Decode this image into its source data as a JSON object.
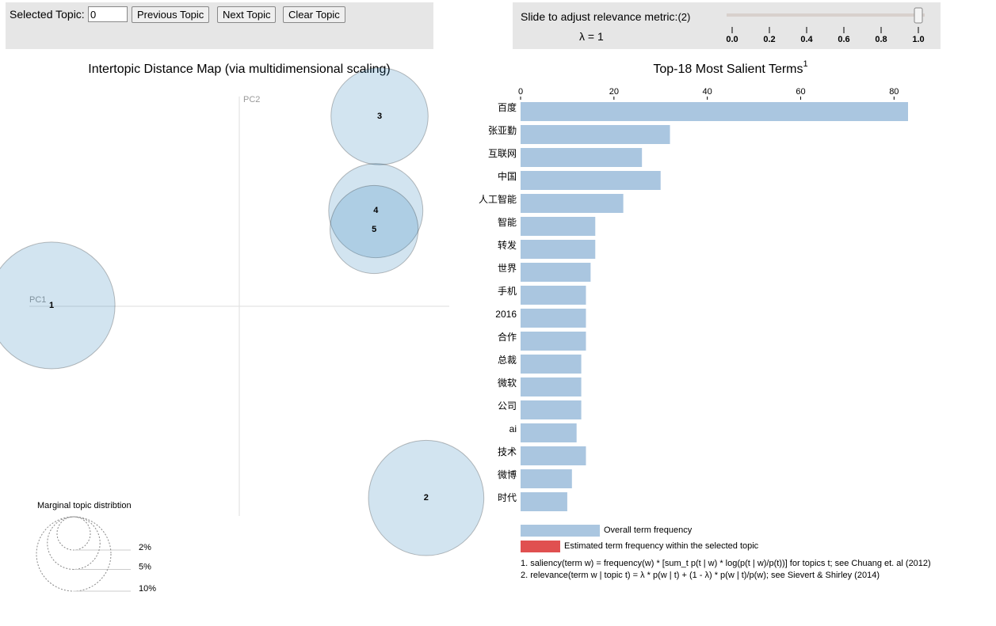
{
  "controls": {
    "label": "Selected Topic:",
    "topic_input": "0",
    "buttons": [
      "Previous Topic",
      "Next Topic",
      "Clear Topic"
    ]
  },
  "slider": {
    "label": "Slide to adjust relevance metric:",
    "note": "(2)",
    "lambda_label": "λ = 1",
    "value": 1,
    "range": [
      0,
      1
    ],
    "ticks": [
      {
        "value": 0,
        "label": "0.0"
      },
      {
        "value": 0.2,
        "label": "0.2"
      },
      {
        "value": 0.4,
        "label": "0.4"
      },
      {
        "value": 0.6,
        "label": "0.6"
      },
      {
        "value": 0.8,
        "label": "0.8"
      },
      {
        "value": 1,
        "label": "1.0"
      }
    ]
  },
  "chart_data": [
    {
      "type": "bubble",
      "title": "Intertopic Distance Map (via multidimensional scaling)",
      "xlabel": "PC1",
      "ylabel": "PC2",
      "color": "#1f77b4",
      "xlim": [
        -0.5,
        0.5
      ],
      "ylim": [
        -0.5,
        0.5
      ],
      "labels": [
        "1",
        "2",
        "3",
        "4",
        "5"
      ],
      "x": [
        -0.447,
        0.445,
        0.334,
        0.325,
        0.321
      ],
      "y": [
        0.002,
        -0.457,
        0.453,
        0.228,
        0.183
      ],
      "sizes": [
        29,
        24,
        17,
        16,
        14
      ],
      "size_legend": {
        "title": "Marginal topic distribtion",
        "values": [
          2,
          5,
          10
        ],
        "value_labels": [
          "2%",
          "5%",
          "10%"
        ]
      }
    },
    {
      "type": "barh",
      "title": "Top-18 Most Salient Terms",
      "title_note": "1",
      "categories": [
        "百度",
        "张亚勤",
        "互联网",
        "中国",
        "人工智能",
        "智能",
        "转发",
        "世界",
        "手机",
        "2016",
        "合作",
        "总裁",
        "微软",
        "公司",
        "ai",
        "技术",
        "微博",
        "时代"
      ],
      "series": [
        {
          "name": "Overall term frequency",
          "color": "#aac6e0",
          "values": [
            83,
            32,
            26,
            30,
            22,
            16,
            16,
            15,
            14,
            14,
            14,
            13,
            13,
            13,
            12,
            14,
            11,
            10
          ]
        }
      ],
      "legend": [
        {
          "name": "Overall term frequency",
          "color": "#aac6e0"
        },
        {
          "name": "Estimated term frequency within the selected topic",
          "color": "#e05050"
        }
      ],
      "xlim": [
        0,
        83
      ],
      "xticks": [
        0,
        20,
        40,
        60,
        80
      ],
      "notes": [
        "1. saliency(term w) = frequency(w) * [sum_t p(t | w) * log(p(t | w)/p(t))] for topics t; see Chuang et. al (2012)",
        "2. relevance(term w | topic t) = λ * p(w | t) + (1 - λ) * p(w | t)/p(w); see Sievert & Shirley (2014)"
      ]
    }
  ]
}
